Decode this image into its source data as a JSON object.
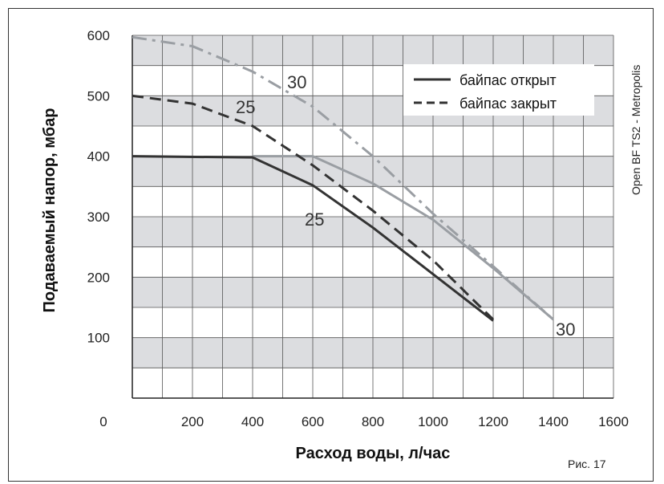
{
  "chart_data": {
    "type": "line",
    "title": "",
    "xlabel": "Расход воды, л/час",
    "ylabel": "Подаваемый напор, мбар",
    "xlim": [
      0,
      1600
    ],
    "ylim": [
      0,
      600
    ],
    "x_ticks": [
      "0",
      "200",
      "400",
      "600",
      "800",
      "1000",
      "1200",
      "1400",
      "1600"
    ],
    "y_ticks": [
      "100",
      "200",
      "300",
      "400",
      "500",
      "600"
    ],
    "grid": true,
    "legend_position": "top-right",
    "legend": [
      {
        "label": "байпас открыт",
        "style": "solid"
      },
      {
        "label": "байпас закрыт",
        "style": "dashed"
      }
    ],
    "series": [
      {
        "color": "#9a9ea3",
        "style": "solid",
        "x": [
          400,
          600,
          800,
          1000,
          1200,
          1400
        ],
        "y": [
          400,
          400,
          355,
          295,
          215,
          130
        ]
      },
      {
        "color": "#333333",
        "style": "solid",
        "x": [
          0,
          400,
          600,
          800,
          1000,
          1200
        ],
        "y": [
          400,
          398,
          352,
          282,
          205,
          128
        ]
      },
      {
        "color": "#9a9ea3",
        "style": "dashdot",
        "x": [
          0,
          200,
          400,
          600,
          800,
          1000,
          1200,
          1400
        ],
        "y": [
          597,
          582,
          540,
          482,
          400,
          305,
          218,
          130
        ]
      },
      {
        "color": "#333333",
        "style": "dashed",
        "x": [
          0,
          200,
          400,
          600,
          800,
          1000,
          1200
        ],
        "y": [
          500,
          487,
          450,
          385,
          310,
          228,
          130
        ]
      }
    ],
    "annotations": [
      "30",
      "25",
      "25",
      "30"
    ],
    "side_label": "Open BF TS2 - Metropolis",
    "figure_label": "Рис. 17"
  },
  "colors": {
    "band_gray": "#dcdde0",
    "grid_line": "#555555",
    "dark_line": "#333333",
    "light_line": "#9a9ea3"
  }
}
